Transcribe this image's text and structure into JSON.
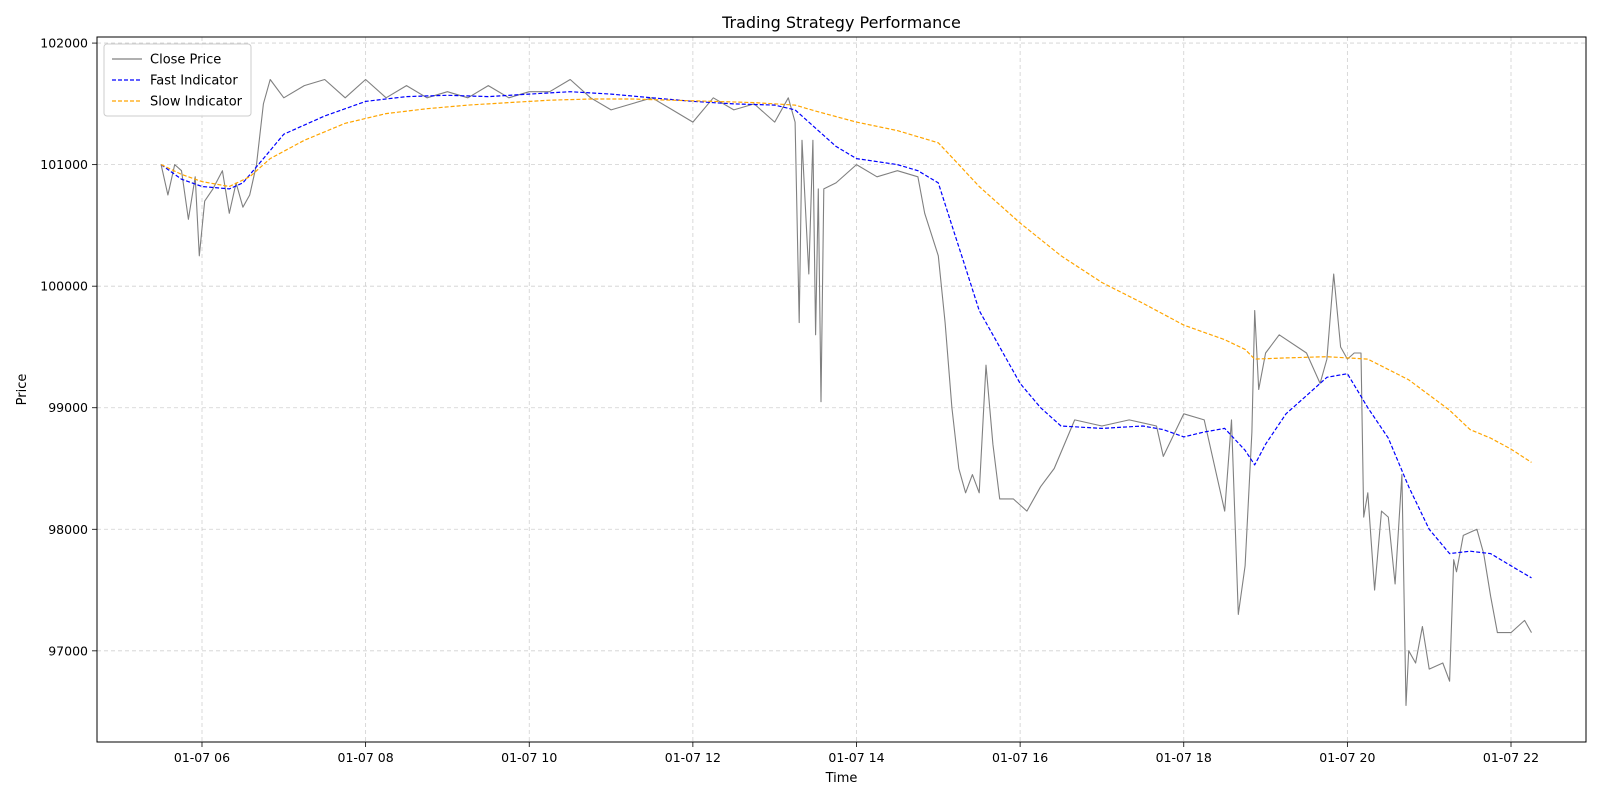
{
  "chart_data": {
    "type": "line",
    "title": "Trading Strategy Performance",
    "xlabel": "Time",
    "ylabel": "Price",
    "x_ticks": [
      "01-07 06",
      "01-07 08",
      "01-07 10",
      "01-07 12",
      "01-07 14",
      "01-07 16",
      "01-07 18",
      "01-07 20",
      "01-07 22"
    ],
    "x_tick_hours": [
      6,
      8,
      10,
      12,
      14,
      16,
      18,
      20,
      22
    ],
    "y_ticks": [
      97000,
      98000,
      99000,
      100000,
      101000,
      102000
    ],
    "xlim": [
      "01-07 04:43",
      "01-07 22:55"
    ],
    "ylim": [
      96250,
      102050
    ],
    "grid": true,
    "grid_style": "dashed",
    "legend_position": "top-left",
    "series": [
      {
        "name": "Close Price",
        "color": "#808080",
        "style": "solid",
        "points": [
          [
            "01-07 05:30",
            101000
          ],
          [
            "01-07 05:35",
            100750
          ],
          [
            "01-07 05:40",
            101000
          ],
          [
            "01-07 05:45",
            100950
          ],
          [
            "01-07 05:50",
            100550
          ],
          [
            "01-07 05:55",
            100900
          ],
          [
            "01-07 05:58",
            100250
          ],
          [
            "01-07 06:02",
            100700
          ],
          [
            "01-07 06:08",
            100800
          ],
          [
            "01-07 06:15",
            100950
          ],
          [
            "01-07 06:20",
            100600
          ],
          [
            "01-07 06:25",
            100850
          ],
          [
            "01-07 06:30",
            100650
          ],
          [
            "01-07 06:35",
            100750
          ],
          [
            "01-07 06:40",
            101000
          ],
          [
            "01-07 06:45",
            101500
          ],
          [
            "01-07 06:50",
            101700
          ],
          [
            "01-07 07:00",
            101550
          ],
          [
            "01-07 07:15",
            101650
          ],
          [
            "01-07 07:30",
            101700
          ],
          [
            "01-07 07:45",
            101550
          ],
          [
            "01-07 08:00",
            101700
          ],
          [
            "01-07 08:15",
            101550
          ],
          [
            "01-07 08:30",
            101650
          ],
          [
            "01-07 08:45",
            101550
          ],
          [
            "01-07 09:00",
            101600
          ],
          [
            "01-07 09:15",
            101550
          ],
          [
            "01-07 09:30",
            101650
          ],
          [
            "01-07 09:45",
            101550
          ],
          [
            "01-07 10:00",
            101600
          ],
          [
            "01-07 10:15",
            101600
          ],
          [
            "01-07 10:30",
            101700
          ],
          [
            "01-07 10:45",
            101550
          ],
          [
            "01-07 11:00",
            101450
          ],
          [
            "01-07 11:15",
            101500
          ],
          [
            "01-07 11:30",
            101550
          ],
          [
            "01-07 11:45",
            101450
          ],
          [
            "01-07 12:00",
            101350
          ],
          [
            "01-07 12:15",
            101550
          ],
          [
            "01-07 12:30",
            101450
          ],
          [
            "01-07 12:45",
            101500
          ],
          [
            "01-07 13:00",
            101350
          ],
          [
            "01-07 13:10",
            101550
          ],
          [
            "01-07 13:15",
            101350
          ],
          [
            "01-07 13:18",
            99700
          ],
          [
            "01-07 13:20",
            101200
          ],
          [
            "01-07 13:25",
            100100
          ],
          [
            "01-07 13:28",
            101200
          ],
          [
            "01-07 13:30",
            99600
          ],
          [
            "01-07 13:32",
            100800
          ],
          [
            "01-07 13:34",
            99050
          ],
          [
            "01-07 13:36",
            100800
          ],
          [
            "01-07 13:45",
            100850
          ],
          [
            "01-07 14:00",
            101000
          ],
          [
            "01-07 14:15",
            100900
          ],
          [
            "01-07 14:30",
            100950
          ],
          [
            "01-07 14:45",
            100900
          ],
          [
            "01-07 14:50",
            100600
          ],
          [
            "01-07 15:00",
            100250
          ],
          [
            "01-07 15:05",
            99700
          ],
          [
            "01-07 15:10",
            99000
          ],
          [
            "01-07 15:15",
            98500
          ],
          [
            "01-07 15:20",
            98300
          ],
          [
            "01-07 15:25",
            98450
          ],
          [
            "01-07 15:30",
            98300
          ],
          [
            "01-07 15:35",
            99350
          ],
          [
            "01-07 15:40",
            98700
          ],
          [
            "01-07 15:45",
            98250
          ],
          [
            "01-07 15:55",
            98250
          ],
          [
            "01-07 16:05",
            98150
          ],
          [
            "01-07 16:15",
            98350
          ],
          [
            "01-07 16:25",
            98500
          ],
          [
            "01-07 16:40",
            98900
          ],
          [
            "01-07 17:00",
            98850
          ],
          [
            "01-07 17:20",
            98900
          ],
          [
            "01-07 17:40",
            98850
          ],
          [
            "01-07 17:45",
            98600
          ],
          [
            "01-07 18:00",
            98950
          ],
          [
            "01-07 18:15",
            98900
          ],
          [
            "01-07 18:30",
            98150
          ],
          [
            "01-07 18:35",
            98900
          ],
          [
            "01-07 18:40",
            97300
          ],
          [
            "01-07 18:45",
            97700
          ],
          [
            "01-07 18:50",
            98800
          ],
          [
            "01-07 18:52",
            99800
          ],
          [
            "01-07 18:55",
            99150
          ],
          [
            "01-07 19:00",
            99450
          ],
          [
            "01-07 19:10",
            99600
          ],
          [
            "01-07 19:30",
            99450
          ],
          [
            "01-07 19:40",
            99200
          ],
          [
            "01-07 19:45",
            99400
          ],
          [
            "01-07 19:50",
            100100
          ],
          [
            "01-07 19:55",
            99500
          ],
          [
            "01-07 20:00",
            99400
          ],
          [
            "01-07 20:05",
            99450
          ],
          [
            "01-07 20:10",
            99450
          ],
          [
            "01-07 20:12",
            98100
          ],
          [
            "01-07 20:15",
            98300
          ],
          [
            "01-07 20:20",
            97500
          ],
          [
            "01-07 20:25",
            98150
          ],
          [
            "01-07 20:30",
            98100
          ],
          [
            "01-07 20:35",
            97550
          ],
          [
            "01-07 20:40",
            98450
          ],
          [
            "01-07 20:43",
            96550
          ],
          [
            "01-07 20:45",
            97000
          ],
          [
            "01-07 20:50",
            96900
          ],
          [
            "01-07 20:55",
            97200
          ],
          [
            "01-07 21:00",
            96850
          ],
          [
            "01-07 21:10",
            96900
          ],
          [
            "01-07 21:15",
            96750
          ],
          [
            "01-07 21:18",
            97750
          ],
          [
            "01-07 21:20",
            97650
          ],
          [
            "01-07 21:25",
            97950
          ],
          [
            "01-07 21:35",
            98000
          ],
          [
            "01-07 21:40",
            97800
          ],
          [
            "01-07 21:45",
            97450
          ],
          [
            "01-07 21:50",
            97150
          ],
          [
            "01-07 22:00",
            97150
          ],
          [
            "01-07 22:10",
            97250
          ],
          [
            "01-07 22:15",
            97150
          ]
        ]
      },
      {
        "name": "Fast Indicator",
        "color": "#0000ff",
        "style": "dashed",
        "points": [
          [
            "01-07 05:30",
            101000
          ],
          [
            "01-07 05:45",
            100880
          ],
          [
            "01-07 06:00",
            100820
          ],
          [
            "01-07 06:20",
            100800
          ],
          [
            "01-07 06:30",
            100850
          ],
          [
            "01-07 06:45",
            101050
          ],
          [
            "01-07 07:00",
            101250
          ],
          [
            "01-07 07:30",
            101400
          ],
          [
            "01-07 08:00",
            101520
          ],
          [
            "01-07 08:30",
            101560
          ],
          [
            "01-07 09:00",
            101570
          ],
          [
            "01-07 09:30",
            101560
          ],
          [
            "01-07 10:00",
            101580
          ],
          [
            "01-07 10:30",
            101600
          ],
          [
            "01-07 11:00",
            101580
          ],
          [
            "01-07 11:30",
            101550
          ],
          [
            "01-07 12:00",
            101520
          ],
          [
            "01-07 12:30",
            101500
          ],
          [
            "01-07 13:00",
            101490
          ],
          [
            "01-07 13:15",
            101450
          ],
          [
            "01-07 13:30",
            101300
          ],
          [
            "01-07 13:45",
            101150
          ],
          [
            "01-07 14:00",
            101050
          ],
          [
            "01-07 14:30",
            101000
          ],
          [
            "01-07 14:45",
            100950
          ],
          [
            "01-07 15:00",
            100850
          ],
          [
            "01-07 15:10",
            100500
          ],
          [
            "01-07 15:20",
            100150
          ],
          [
            "01-07 15:30",
            99800
          ],
          [
            "01-07 15:45",
            99500
          ],
          [
            "01-07 16:00",
            99200
          ],
          [
            "01-07 16:15",
            99000
          ],
          [
            "01-07 16:30",
            98850
          ],
          [
            "01-07 17:00",
            98830
          ],
          [
            "01-07 17:30",
            98850
          ],
          [
            "01-07 17:45",
            98820
          ],
          [
            "01-07 18:00",
            98760
          ],
          [
            "01-07 18:15",
            98800
          ],
          [
            "01-07 18:30",
            98830
          ],
          [
            "01-07 18:45",
            98650
          ],
          [
            "01-07 18:52",
            98530
          ],
          [
            "01-07 19:00",
            98700
          ],
          [
            "01-07 19:15",
            98950
          ],
          [
            "01-07 19:30",
            99100
          ],
          [
            "01-07 19:45",
            99250
          ],
          [
            "01-07 20:00",
            99280
          ],
          [
            "01-07 20:15",
            99000
          ],
          [
            "01-07 20:30",
            98750
          ],
          [
            "01-07 20:45",
            98350
          ],
          [
            "01-07 21:00",
            98000
          ],
          [
            "01-07 21:15",
            97800
          ],
          [
            "01-07 21:30",
            97820
          ],
          [
            "01-07 21:45",
            97800
          ],
          [
            "01-07 22:00",
            97700
          ],
          [
            "01-07 22:15",
            97600
          ]
        ]
      },
      {
        "name": "Slow Indicator",
        "color": "#ffa500",
        "style": "dashed",
        "points": [
          [
            "01-07 05:30",
            101000
          ],
          [
            "01-07 05:45",
            100920
          ],
          [
            "01-07 06:00",
            100860
          ],
          [
            "01-07 06:20",
            100820
          ],
          [
            "01-07 06:35",
            100900
          ],
          [
            "01-07 06:50",
            101050
          ],
          [
            "01-07 07:15",
            101200
          ],
          [
            "01-07 07:45",
            101340
          ],
          [
            "01-07 08:15",
            101420
          ],
          [
            "01-07 08:45",
            101460
          ],
          [
            "01-07 09:15",
            101490
          ],
          [
            "01-07 09:45",
            101510
          ],
          [
            "01-07 10:15",
            101530
          ],
          [
            "01-07 10:45",
            101540
          ],
          [
            "01-07 11:15",
            101540
          ],
          [
            "01-07 11:45",
            101530
          ],
          [
            "01-07 12:15",
            101520
          ],
          [
            "01-07 12:45",
            101510
          ],
          [
            "01-07 13:15",
            101490
          ],
          [
            "01-07 13:30",
            101440
          ],
          [
            "01-07 14:00",
            101350
          ],
          [
            "01-07 14:30",
            101280
          ],
          [
            "01-07 15:00",
            101180
          ],
          [
            "01-07 15:15",
            101000
          ],
          [
            "01-07 15:30",
            100820
          ],
          [
            "01-07 16:00",
            100520
          ],
          [
            "01-07 16:30",
            100250
          ],
          [
            "01-07 17:00",
            100030
          ],
          [
            "01-07 17:30",
            99860
          ],
          [
            "01-07 18:00",
            99680
          ],
          [
            "01-07 18:30",
            99560
          ],
          [
            "01-07 18:45",
            99480
          ],
          [
            "01-07 18:52",
            99400
          ],
          [
            "01-07 19:15",
            99410
          ],
          [
            "01-07 19:45",
            99420
          ],
          [
            "01-07 20:15",
            99400
          ],
          [
            "01-07 20:45",
            99230
          ],
          [
            "01-07 21:15",
            98980
          ],
          [
            "01-07 21:30",
            98820
          ],
          [
            "01-07 21:45",
            98750
          ],
          [
            "01-07 22:00",
            98660
          ],
          [
            "01-07 22:15",
            98550
          ]
        ]
      }
    ]
  }
}
